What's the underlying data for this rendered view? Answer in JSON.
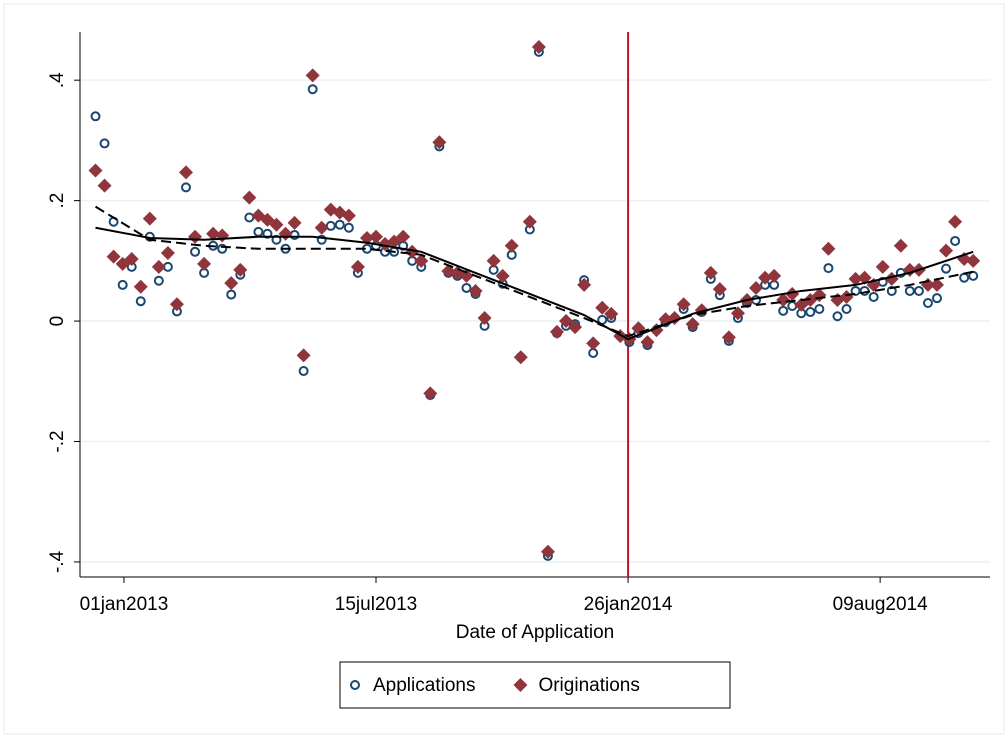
{
  "chart_data": {
    "type": "scatter",
    "xlabel": "Date of Application",
    "xlim": [
      19325,
      20029
    ],
    "ylim": [
      -0.425,
      0.48
    ],
    "xticks": [
      {
        "value": 19359,
        "label": "01jan2013"
      },
      {
        "value": 19554,
        "label": "15jul2013"
      },
      {
        "value": 19749,
        "label": "26jan2014"
      },
      {
        "value": 19944,
        "label": "09aug2014"
      }
    ],
    "yticks": [
      {
        "value": -0.4,
        "label": "-.4"
      },
      {
        "value": -0.2,
        "label": "-.2"
      },
      0,
      {
        "value": 0.2,
        "label": ".2"
      },
      {
        "value": 0.4,
        "label": ".4"
      }
    ],
    "grid": true,
    "xline": {
      "value": 19749,
      "color": "#c8102e"
    },
    "x": [
      19337,
      19344,
      19351,
      19358,
      19365,
      19372,
      19379,
      19386,
      19393,
      19400,
      19407,
      19414,
      19421,
      19428,
      19435,
      19442,
      19449,
      19456,
      19463,
      19470,
      19477,
      19484,
      19491,
      19498,
      19505,
      19512,
      19519,
      19526,
      19533,
      19540,
      19547,
      19554,
      19561,
      19568,
      19575,
      19582,
      19589,
      19596,
      19603,
      19610,
      19617,
      19624,
      19631,
      19638,
      19645,
      19652,
      19659,
      19666,
      19673,
      19680,
      19687,
      19694,
      19701,
      19708,
      19715,
      19722,
      19729,
      19736,
      19743,
      19750,
      19757,
      19764,
      19771,
      19778,
      19785,
      19792,
      19799,
      19806,
      19813,
      19820,
      19827,
      19834,
      19841,
      19848,
      19855,
      19862,
      19869,
      19876,
      19883,
      19890,
      19897,
      19904,
      19911,
      19918,
      19925,
      19932,
      19939,
      19946,
      19953,
      19960,
      19967,
      19974,
      19981,
      19988,
      19995,
      20002,
      20009,
      20016
    ],
    "series": [
      {
        "name": "Applications",
        "color": "#1a476f",
        "marker": "circle",
        "values": [
          0.34,
          0.295,
          0.165,
          0.06,
          0.09,
          0.033,
          0.14,
          0.067,
          0.09,
          0.016,
          0.222,
          0.115,
          0.08,
          0.125,
          0.12,
          0.044,
          0.077,
          0.172,
          0.148,
          0.145,
          0.135,
          0.12,
          0.143,
          -0.083,
          0.385,
          0.135,
          0.158,
          0.16,
          0.155,
          0.08,
          0.12,
          0.125,
          0.115,
          0.115,
          0.125,
          0.1,
          0.09,
          -0.123,
          0.29,
          0.08,
          0.075,
          0.055,
          0.045,
          -0.008,
          0.085,
          0.062,
          0.11,
          -0.06,
          0.152,
          0.447,
          -0.39,
          -0.02,
          -0.008,
          -0.005,
          0.068,
          -0.053,
          0.002,
          0.005,
          -0.025,
          -0.035,
          -0.02,
          -0.04,
          -0.015,
          -0.002,
          0.005,
          0.02,
          -0.01,
          0.015,
          0.07,
          0.043,
          -0.033,
          0.005,
          0.03,
          0.035,
          0.06,
          0.06,
          0.017,
          0.025,
          0.013,
          0.015,
          0.02,
          0.088,
          0.008,
          0.02,
          0.05,
          0.05,
          0.04,
          0.065,
          0.05,
          0.08,
          0.05,
          0.05,
          0.03,
          0.038,
          0.087,
          0.133,
          0.072,
          0.075
        ]
      },
      {
        "name": "Originations",
        "color": "#90353b",
        "marker": "diamond",
        "values": [
          0.25,
          0.225,
          0.107,
          0.095,
          0.103,
          0.057,
          0.17,
          0.09,
          0.113,
          0.028,
          0.247,
          0.14,
          0.095,
          0.145,
          0.142,
          0.063,
          0.085,
          0.205,
          0.175,
          0.168,
          0.16,
          0.145,
          0.163,
          -0.057,
          0.408,
          0.155,
          0.185,
          0.18,
          0.175,
          0.09,
          0.138,
          0.14,
          0.128,
          0.132,
          0.14,
          0.115,
          0.1,
          -0.12,
          0.297,
          0.083,
          0.08,
          0.075,
          0.05,
          0.005,
          0.1,
          0.075,
          0.125,
          -0.06,
          0.165,
          0.455,
          -0.383,
          -0.018,
          0,
          -0.01,
          0.06,
          -0.037,
          0.022,
          0.012,
          -0.025,
          -0.03,
          -0.012,
          -0.035,
          -0.015,
          0.003,
          0.005,
          0.028,
          -0.005,
          0.018,
          0.08,
          0.053,
          -0.027,
          0.013,
          0.035,
          0.055,
          0.072,
          0.075,
          0.035,
          0.045,
          0.027,
          0.035,
          0.043,
          0.12,
          0.035,
          0.04,
          0.07,
          0.072,
          0.06,
          0.09,
          0.07,
          0.125,
          0.085,
          0.085,
          0.06,
          0.06,
          0.117,
          0.165,
          0.103,
          0.1
        ]
      }
    ],
    "fits": [
      {
        "style": "solid",
        "color": "#000000",
        "x": [
          19337,
          19379,
          19421,
          19463,
          19505,
          19547,
          19589,
          19631,
          19673,
          19715,
          19749,
          19799,
          19841,
          19883,
          19925,
          19967,
          20016
        ],
        "values": [
          0.155,
          0.138,
          0.135,
          0.14,
          0.14,
          0.13,
          0.115,
          0.08,
          0.045,
          0.01,
          -0.03,
          0.012,
          0.035,
          0.05,
          0.06,
          0.08,
          0.115
        ]
      },
      {
        "style": "dashed",
        "color": "#000000",
        "x": [
          19337,
          19379,
          19421,
          19463,
          19505,
          19547,
          19589,
          19631,
          19673,
          19715,
          19749,
          19799,
          19841,
          19883,
          19925,
          19967,
          20016
        ],
        "values": [
          0.19,
          0.135,
          0.125,
          0.12,
          0.12,
          0.12,
          0.11,
          0.075,
          0.04,
          0.005,
          -0.025,
          0.01,
          0.025,
          0.035,
          0.045,
          0.06,
          0.082
        ]
      }
    ]
  }
}
